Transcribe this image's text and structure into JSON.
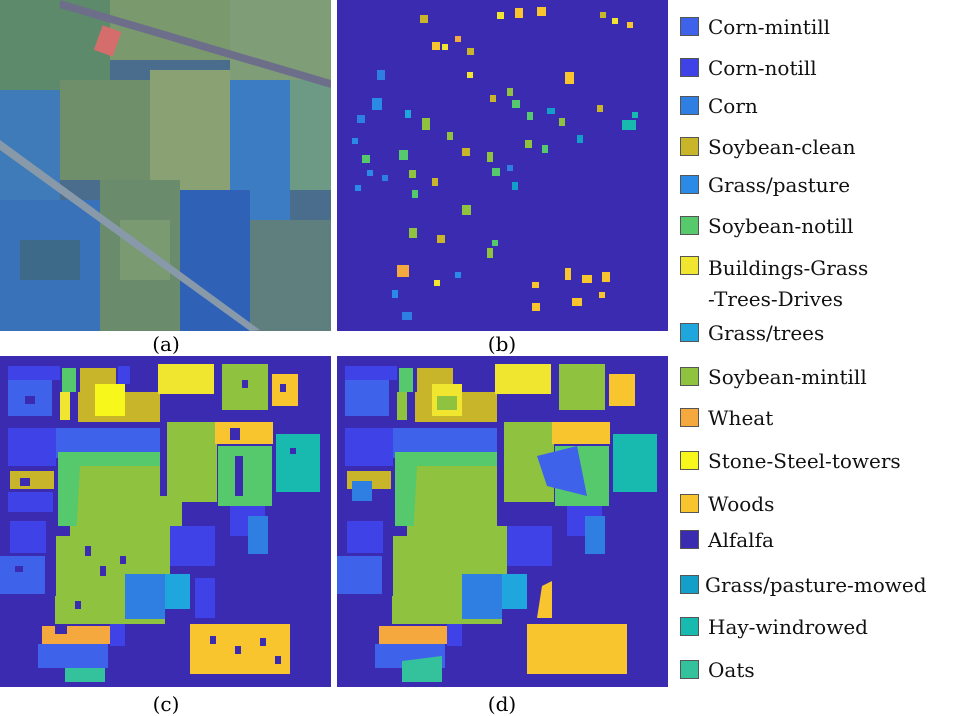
{
  "captions": {
    "a": "(a)",
    "b": "(b)",
    "c": "(c)",
    "d": "(d)"
  },
  "legend": [
    {
      "label": "Corn-mintill",
      "color": "#3f62ea"
    },
    {
      "label": "Corn-notill",
      "color": "#3f42e6"
    },
    {
      "label": "Corn",
      "color": "#2f7fe3"
    },
    {
      "label": "Soybean-clean",
      "color": "#c9b529"
    },
    {
      "label": "Grass/pasture",
      "color": "#2b8ae6"
    },
    {
      "label": "Soybean-notill",
      "color": "#55c96b"
    },
    {
      "label": "Buildings-Grass\n-Trees-Drives",
      "color": "#f1e62f"
    },
    {
      "label": "Grass/trees",
      "color": "#1fa7dd"
    },
    {
      "label": "Soybean-mintill",
      "color": "#8fc23f"
    },
    {
      "label": "Wheat",
      "color": "#f4a83d"
    },
    {
      "label": "Stone-Steel-towers",
      "color": "#f7f71b"
    },
    {
      "label": "Woods",
      "color": "#f9c52f"
    },
    {
      "label": "Alfalfa",
      "color": "#3b2bb0"
    },
    {
      "label": "Grass/pasture-mowed",
      "color": "#149fc9"
    },
    {
      "label": "Hay-windrowed",
      "color": "#18b9ae"
    },
    {
      "label": "Oats",
      "color": "#33c29b"
    }
  ]
}
